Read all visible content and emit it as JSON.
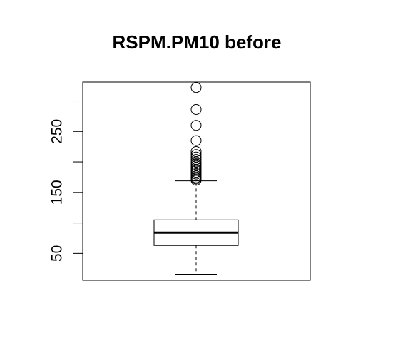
{
  "chart_data": {
    "type": "boxplot",
    "title": "RSPM.PM10 before",
    "xlabel": "",
    "ylabel": "",
    "ylim": [
      6,
      331
    ],
    "y_ticks": [
      50,
      100,
      150,
      200,
      250,
      300
    ],
    "y_tick_labels": [
      "50",
      "150",
      "250"
    ],
    "grid": false,
    "box": {
      "whisker_low": 16,
      "q1": 63,
      "median": 84,
      "q3": 105,
      "whisker_high": 169
    },
    "outliers": [
      170,
      172,
      174,
      177,
      180,
      183,
      186,
      188,
      191,
      194,
      197,
      200,
      204,
      208,
      212,
      217,
      235,
      260,
      286,
      322
    ]
  }
}
